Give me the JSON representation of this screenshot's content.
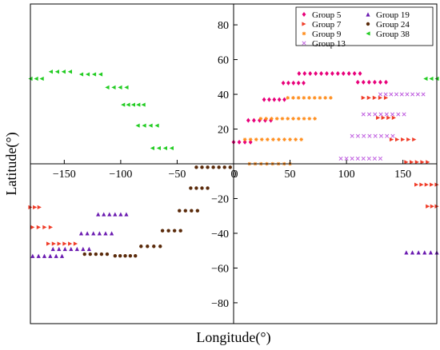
{
  "chart_data": {
    "type": "scatter",
    "title": "",
    "xlabel": "Longitude(°)",
    "ylabel": "Latitude(°)",
    "xlim": [
      -180,
      180
    ],
    "ylim": [
      -92,
      92
    ],
    "x_ticks": [
      -150,
      -100,
      -50,
      0,
      50,
      100,
      150
    ],
    "y_ticks": [
      -80,
      -60,
      -40,
      -20,
      20,
      40,
      60,
      80
    ],
    "grid": false,
    "legend_position": "top-right",
    "series": [
      {
        "name": "Group 5",
        "color": "#e8007a",
        "marker": "diamond",
        "segments": [
          {
            "y": 12.5,
            "x": [
              0,
              15
            ]
          },
          {
            "y": 25,
            "x": [
              13,
              33
            ]
          },
          {
            "y": 37,
            "x": [
              27,
              45
            ]
          },
          {
            "y": 46.5,
            "x": [
              44,
              62
            ]
          },
          {
            "y": 52,
            "x": [
              58,
              112
            ]
          },
          {
            "y": 47,
            "x": [
              110,
              135
            ]
          }
        ]
      },
      {
        "name": "Group 7",
        "color": "#f03c28",
        "marker": "triangle-right",
        "segments": [
          {
            "y": 38,
            "x": [
              115,
              135
            ]
          },
          {
            "y": 26.5,
            "x": [
              128,
              142
            ]
          },
          {
            "y": 14,
            "x": [
              140,
              160
            ]
          },
          {
            "y": 1,
            "x": [
              153,
              172
            ]
          },
          {
            "y": -12,
            "x": [
              162,
              180
            ]
          },
          {
            "y": -24.5,
            "x": [
              172,
              180
            ]
          },
          {
            "y": -25,
            "x": [
              -180,
              -172
            ]
          },
          {
            "y": -36.5,
            "x": [
              -178,
              -162
            ]
          },
          {
            "y": -46,
            "x": [
              -164,
              -140
            ]
          }
        ]
      },
      {
        "name": "Group 9",
        "color": "#ff8c1a",
        "marker": "star",
        "segments": [
          {
            "y": 0,
            "x": [
              14,
              50
            ]
          },
          {
            "y": 14,
            "x": [
              10,
              60
            ]
          },
          {
            "y": 26,
            "x": [
              24,
              72
            ]
          },
          {
            "y": 38,
            "x": [
              48,
              86
            ]
          }
        ]
      },
      {
        "name": "Group 13",
        "color": "#c060e0",
        "marker": "x",
        "segments": [
          {
            "y": 3,
            "x": [
              95,
              130
            ]
          },
          {
            "y": 16,
            "x": [
              105,
              141
            ]
          },
          {
            "y": 28.5,
            "x": [
              115,
              151
            ]
          },
          {
            "y": 40,
            "x": [
              130,
              168
            ]
          }
        ]
      },
      {
        "name": "Group 19",
        "color": "#6a1ab0",
        "marker": "triangle-up",
        "segments": [
          {
            "y": -53,
            "x": [
              -178,
              -152
            ]
          },
          {
            "y": -49,
            "x": [
              -160,
              -128
            ]
          },
          {
            "y": -40,
            "x": [
              -135,
              -108
            ]
          },
          {
            "y": -29,
            "x": [
              -120,
              -95
            ]
          },
          {
            "y": -51,
            "x": [
              153,
              180
            ]
          }
        ]
      },
      {
        "name": "Group 24",
        "color": "#5a2a0a",
        "marker": "circle",
        "segments": [
          {
            "y": -52,
            "x": [
              -132,
              -112
            ]
          },
          {
            "y": -53,
            "x": [
              -105,
              -87
            ]
          },
          {
            "y": -47.5,
            "x": [
              -82,
              -65
            ]
          },
          {
            "y": -38.5,
            "x": [
              -63,
              -47
            ]
          },
          {
            "y": -27,
            "x": [
              -48,
              -32
            ]
          },
          {
            "y": -14,
            "x": [
              -38,
              -23
            ]
          },
          {
            "y": -2,
            "x": [
              -33,
              -3
            ]
          }
        ]
      },
      {
        "name": "Group 38",
        "color": "#22cc22",
        "marker": "triangle-left",
        "segments": [
          {
            "y": 49,
            "x": [
              -180,
              -170
            ]
          },
          {
            "y": 53,
            "x": [
              -162,
              -145
            ]
          },
          {
            "y": 51.5,
            "x": [
              -135,
              -118
            ]
          },
          {
            "y": 44,
            "x": [
              -112,
              -95
            ]
          },
          {
            "y": 34,
            "x": [
              -98,
              -80
            ]
          },
          {
            "y": 22,
            "x": [
              -85,
              -68
            ]
          },
          {
            "y": 9,
            "x": [
              -72,
              -55
            ]
          },
          {
            "y": 49,
            "x": [
              170,
              180
            ]
          }
        ]
      }
    ]
  }
}
